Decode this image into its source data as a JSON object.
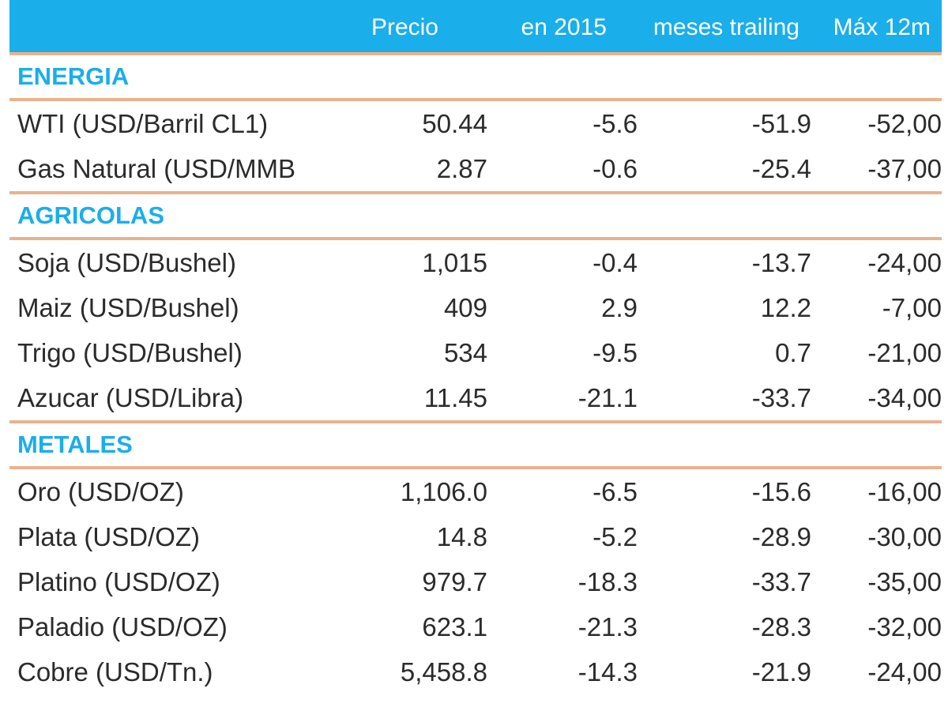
{
  "header": {
    "columns": [
      "Precio",
      "en 2015",
      "meses trailing",
      "Máx 12m"
    ]
  },
  "sections": [
    {
      "name": "ENERGIA",
      "rows": [
        {
          "label": "WTI (USD/Barril CL1)",
          "values": [
            "50.44",
            "-5.6",
            "-51.9",
            "-52,00"
          ]
        },
        {
          "label": "Gas Natural (USD/MMB",
          "values": [
            "2.87",
            "-0.6",
            "-25.4",
            "-37,00"
          ]
        }
      ]
    },
    {
      "name": "AGRICOLAS",
      "rows": [
        {
          "label": "Soja (USD/Bushel)",
          "values": [
            "1,015",
            "-0.4",
            "-13.7",
            "-24,00"
          ]
        },
        {
          "label": "Maiz (USD/Bushel)",
          "values": [
            "409",
            "2.9",
            "12.2",
            "-7,00"
          ]
        },
        {
          "label": "Trigo (USD/Bushel)",
          "values": [
            "534",
            "-9.5",
            "0.7",
            "-21,00"
          ]
        },
        {
          "label": "Azucar (USD/Libra)",
          "values": [
            "11.45",
            "-21.1",
            "-33.7",
            "-34,00"
          ]
        }
      ]
    },
    {
      "name": "METALES",
      "rows": [
        {
          "label": "Oro (USD/OZ)",
          "values": [
            "1,106.0",
            "-6.5",
            "-15.6",
            "-16,00"
          ]
        },
        {
          "label": "Plata (USD/OZ)",
          "values": [
            "14.8",
            "-5.2",
            "-28.9",
            "-30,00"
          ]
        },
        {
          "label": "Platino (USD/OZ)",
          "values": [
            "979.7",
            "-18.3",
            "-33.7",
            "-35,00"
          ]
        },
        {
          "label": "Paladio (USD/OZ)",
          "values": [
            "623.1",
            "-21.3",
            "-28.3",
            "-32,00"
          ]
        },
        {
          "label": "Cobre (USD/Tn.)",
          "values": [
            "5,458.8",
            "-14.3",
            "-21.9",
            "-24,00"
          ]
        }
      ]
    }
  ],
  "colors": {
    "header_bg": "#1aaeea",
    "section_text": "#1aaeea",
    "rule": "#e9b28d",
    "text": "#2b2b2b"
  }
}
